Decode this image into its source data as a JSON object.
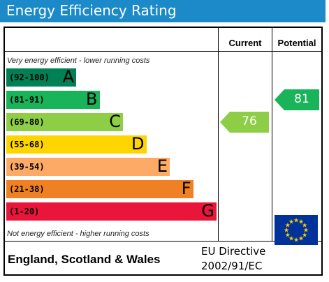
{
  "title": "Energy Efficiency Rating",
  "columns": {
    "current": "Current",
    "potential": "Potential"
  },
  "top_note": "Very energy efficient - lower running costs",
  "bottom_note": "Not energy efficient - higher running costs",
  "footer": {
    "region": "England, Scotland & Wales",
    "directive_line1": "EU Directive",
    "directive_line2": "2002/91/EC"
  },
  "colors": {
    "A": "#008054",
    "B": "#19b459",
    "C": "#8dce46",
    "D": "#ffd500",
    "E": "#fcaa65",
    "F": "#ef8023",
    "G": "#e9153b",
    "title_bar": "#1c8ac9",
    "eu_flag": "#003399",
    "eu_star": "#ffcc00"
  },
  "chart_data": {
    "type": "bar",
    "categories": [
      "A",
      "B",
      "C",
      "D",
      "E",
      "F",
      "G"
    ],
    "ranges": [
      "(92-100)",
      "(81-91)",
      "(69-80)",
      "(55-68)",
      "(39-54)",
      "(21-38)",
      "(1-20)"
    ],
    "band_min": [
      92,
      81,
      69,
      55,
      39,
      21,
      1
    ],
    "current": {
      "value": 76,
      "band": "C"
    },
    "potential": {
      "value": 81,
      "band": "B"
    }
  },
  "icons": {
    "flag": "eu-flag-icon"
  }
}
